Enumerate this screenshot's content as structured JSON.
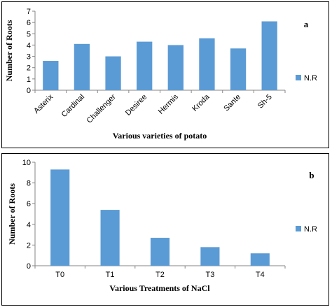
{
  "chart_data": [
    {
      "panel_label": "a",
      "type": "bar",
      "categories": [
        "Asterix",
        "Cardinal",
        "Challenger",
        "Desiree",
        "Hermis",
        "Kroda",
        "Sante",
        "Sh-5"
      ],
      "series": [
        {
          "name": "N.R",
          "values": [
            2.6,
            4.1,
            3.0,
            4.3,
            4.0,
            4.6,
            3.7,
            6.1
          ],
          "color": "#5b9bd5"
        }
      ],
      "xlabel": "Various varieties of potato",
      "ylabel": "Number of Roots",
      "ylim": [
        0,
        7
      ],
      "yticks": [
        "0",
        "1",
        "2",
        "3",
        "4",
        "5",
        "6",
        "7"
      ],
      "legend": "right",
      "grid": false
    },
    {
      "panel_label": "b",
      "type": "bar",
      "categories": [
        "T0",
        "T1",
        "T2",
        "T3",
        "T4"
      ],
      "series": [
        {
          "name": "N.R",
          "values": [
            9.3,
            5.4,
            2.7,
            1.8,
            1.2
          ],
          "color": "#5b9bd5"
        }
      ],
      "xlabel": "Various Treatments of NaCl",
      "ylabel": "Number of Roots",
      "ylim": [
        0,
        10
      ],
      "yticks": [
        "0",
        "2",
        "4",
        "6",
        "8",
        "10"
      ],
      "legend": "right",
      "grid": false
    }
  ]
}
